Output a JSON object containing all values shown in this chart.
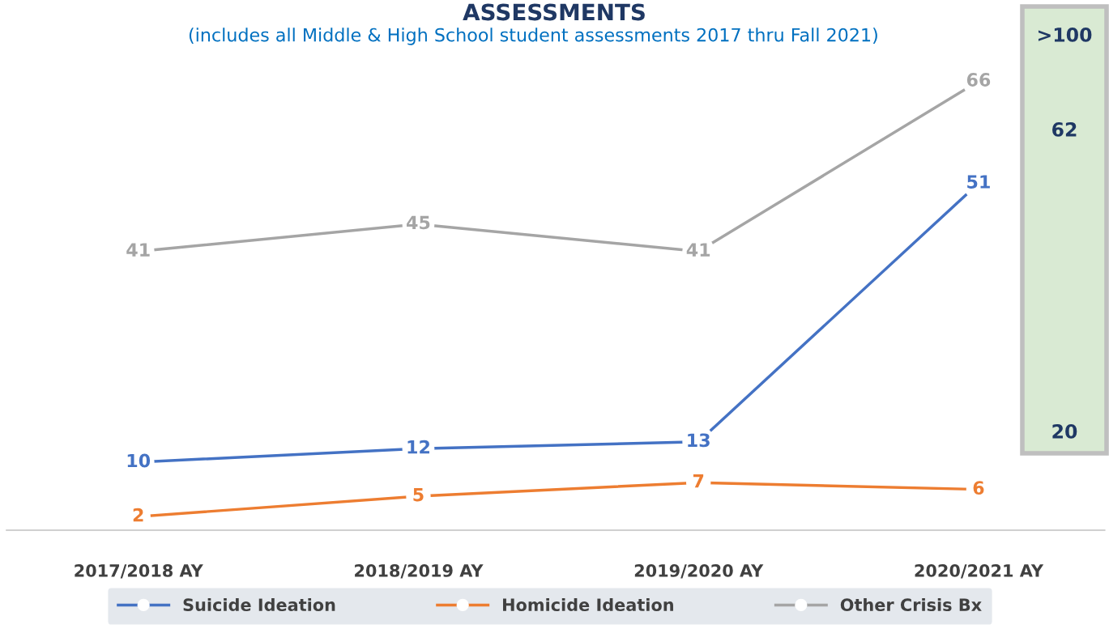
{
  "chart_data": {
    "type": "line",
    "title": "ASSESSMENTS",
    "subtitle": "(includes all Middle & High School student assessments 2017 thru Fall 2021)",
    "categories": [
      "2017/2018 AY",
      "2018/2019 AY",
      "2019/2020 AY",
      "2020/2021 AY"
    ],
    "series": [
      {
        "name": "Suicide Ideation",
        "color": "#4472c4",
        "values": [
          10,
          12,
          13,
          51
        ]
      },
      {
        "name": "Homicide Ideation",
        "color": "#ed7d31",
        "values": [
          2,
          5,
          7,
          6
        ]
      },
      {
        "name": "Other Crisis Bx",
        "color": "#a5a5a5",
        "values": [
          41,
          45,
          41,
          66
        ]
      }
    ],
    "annotations": [
      ">100",
      "62",
      "20"
    ],
    "data_labels": true,
    "marker": "circle",
    "line_style": "solid",
    "legend": "bottom",
    "grid": false
  }
}
